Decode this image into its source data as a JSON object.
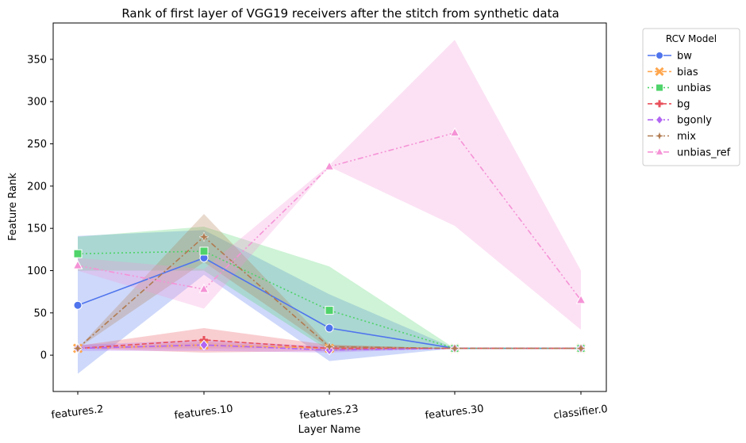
{
  "chart_data": {
    "type": "line",
    "title": "Rank of first layer of VGG19 receivers after the stitch from synthetic data",
    "xlabel": "Layer Name",
    "ylabel": "Feature Rank",
    "categories": [
      "features.2",
      "features.10",
      "features.23",
      "features.30",
      "classifier.0"
    ],
    "ylim": [
      -43,
      393
    ],
    "yticks": [
      0,
      50,
      100,
      150,
      200,
      250,
      300,
      350
    ],
    "grid": false,
    "legend": {
      "title": "RCV Model",
      "placement": "outside-top-right"
    },
    "series": [
      {
        "name": "bw",
        "color": "#4f74ed",
        "marker": "circle",
        "dash": "solid",
        "values": [
          59,
          115,
          32,
          8,
          8
        ],
        "ci_low": [
          -22,
          95,
          -7,
          8,
          8
        ],
        "ci_high": [
          141,
          148,
          72,
          8,
          8
        ]
      },
      {
        "name": "bias",
        "color": "#ffa64d",
        "marker": "x",
        "dash": "dashed",
        "values": [
          8,
          12,
          8,
          8,
          8
        ],
        "ci_low": [
          8,
          8,
          8,
          8,
          8
        ],
        "ci_high": [
          8,
          16,
          8,
          8,
          8
        ]
      },
      {
        "name": "unbias",
        "color": "#4fd36a",
        "marker": "square",
        "dash": "dotted",
        "values": [
          120,
          123,
          53,
          8,
          8
        ],
        "ci_low": [
          100,
          100,
          5,
          8,
          8
        ],
        "ci_high": [
          140,
          152,
          105,
          8,
          8
        ]
      },
      {
        "name": "bg",
        "color": "#e8505b",
        "marker": "plus",
        "dash": "dashed",
        "values": [
          8,
          18,
          8,
          8,
          8
        ],
        "ci_low": [
          8,
          3,
          5,
          8,
          8
        ],
        "ci_high": [
          11,
          32,
          12,
          8,
          8
        ]
      },
      {
        "name": "bgonly",
        "color": "#b165f2",
        "marker": "diamond",
        "dash": "dashdot",
        "values": [
          8,
          12,
          6,
          8,
          8
        ],
        "ci_low": [
          5,
          5,
          3,
          8,
          8
        ],
        "ci_high": [
          12,
          18,
          10,
          8,
          8
        ]
      },
      {
        "name": "mix",
        "color": "#b07a50",
        "marker": "star",
        "dash": "dashdot",
        "values": [
          8,
          140,
          10,
          8,
          8
        ],
        "ci_low": [
          8,
          110,
          8,
          8,
          8
        ],
        "ci_high": [
          8,
          167,
          12,
          8,
          8
        ]
      },
      {
        "name": "unbias_ref",
        "color": "#f593d6",
        "marker": "triangle",
        "dash": "dashdotdot",
        "values": [
          106,
          78,
          223,
          263,
          65
        ],
        "ci_low": [
          100,
          55,
          223,
          153,
          30
        ],
        "ci_high": [
          115,
          102,
          225,
          373,
          100
        ]
      }
    ]
  }
}
